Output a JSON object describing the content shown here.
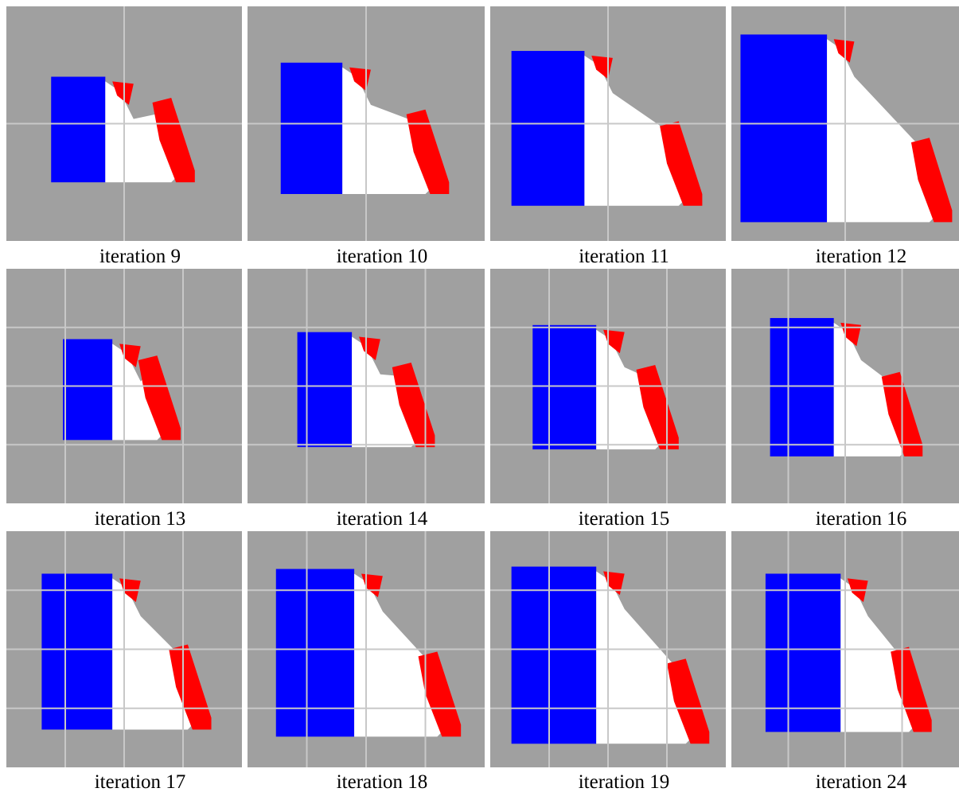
{
  "panels": [
    {
      "caption": "iteration 9"
    },
    {
      "caption": "iteration 10"
    },
    {
      "caption": "iteration 11"
    },
    {
      "caption": "iteration 12"
    },
    {
      "caption": "iteration 13"
    },
    {
      "caption": "iteration 14"
    },
    {
      "caption": "iteration 15"
    },
    {
      "caption": "iteration 16"
    },
    {
      "caption": "iteration 17"
    },
    {
      "caption": "iteration 18"
    },
    {
      "caption": "iteration 19"
    },
    {
      "caption": "iteration 24"
    }
  ]
}
